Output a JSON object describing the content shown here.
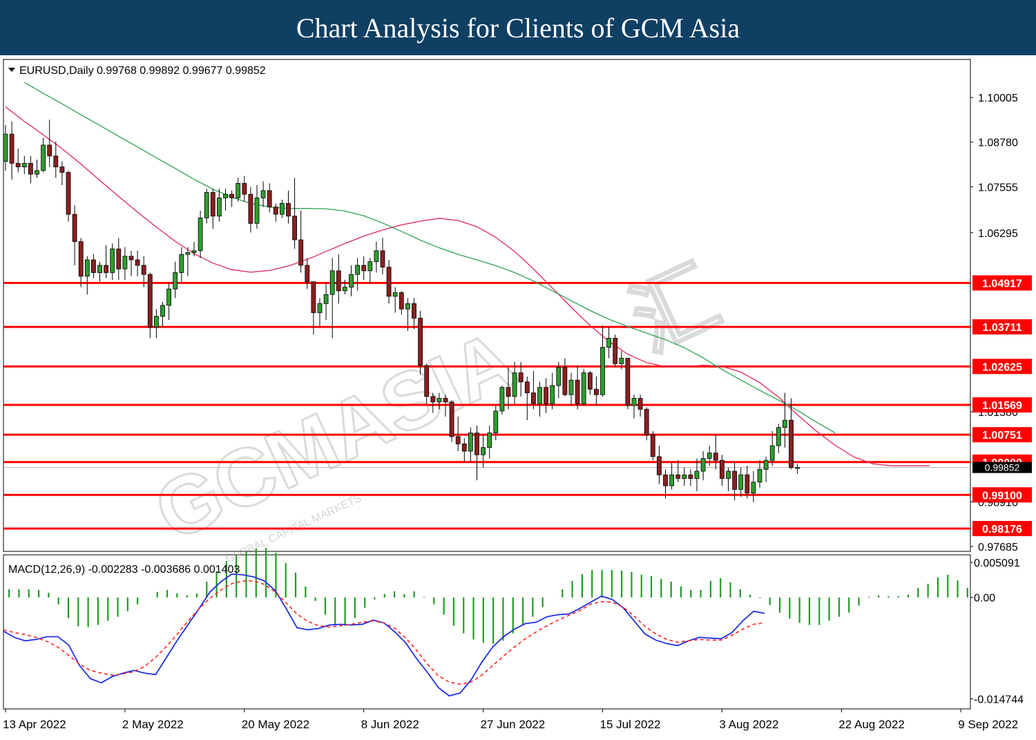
{
  "banner": {
    "title": "Chart Analysis for Clients of GCM Asia"
  },
  "watermark": {
    "text": "GCMASIA",
    "sub": "GLOBAL CAPITAL MARKETS",
    "cn": "汇"
  },
  "chart_data": {
    "type": "candlestick",
    "header": "EURUSD,Daily  0.99768 0.99892 0.99677 0.99852",
    "symbol": "EURUSD",
    "timeframe": "Daily",
    "ohlc_last": [
      0.99768,
      0.99892,
      0.99677,
      0.99852
    ],
    "ylim": [
      0.9755,
      1.1105
    ],
    "y_ticks": [
      1.10005,
      1.0878,
      1.07555,
      1.06295,
      1.0138,
      0.9891,
      0.97685
    ],
    "current_price": 0.99852,
    "current_price_label": "0.99852",
    "levels": [
      1.04917,
      1.03711,
      1.02625,
      1.01569,
      1.00751,
      1.0,
      0.991,
      0.98176
    ],
    "level_labels": [
      "1.04917",
      "1.03711",
      "1.02625",
      "1.01569",
      "1.00751",
      "1.00000",
      "0.99100",
      "0.98176"
    ],
    "x_labels": [
      "13 Apr 2022",
      "2 May 2022",
      "20 May 2022",
      "8 Jun 2022",
      "27 Jun 2022",
      "15 Jul 2022",
      "3 Aug 2022",
      "22 Aug 2022",
      "9 Sep 2022"
    ],
    "x_label_bars": [
      0,
      19,
      38,
      57,
      76,
      95,
      114,
      133,
      152
    ],
    "bars": [
      [
        1.0825,
        1.0925,
        1.08,
        1.09
      ],
      [
        1.09,
        1.0935,
        1.0775,
        1.082
      ],
      [
        1.082,
        1.086,
        1.0795,
        1.081
      ],
      [
        1.081,
        1.084,
        1.079,
        1.082
      ],
      [
        1.082,
        1.084,
        1.0765,
        1.079
      ],
      [
        1.079,
        1.083,
        1.078,
        1.08
      ],
      [
        1.08,
        1.089,
        1.0795,
        1.087
      ],
      [
        1.087,
        1.094,
        1.081,
        1.084
      ],
      [
        1.084,
        1.088,
        1.078,
        1.081
      ],
      [
        1.081,
        1.0825,
        1.076,
        1.0795
      ],
      [
        1.0795,
        1.08,
        1.066,
        1.068
      ],
      [
        1.068,
        1.0705,
        1.054,
        1.0605
      ],
      [
        1.0605,
        1.0615,
        1.048,
        1.051
      ],
      [
        1.051,
        1.0565,
        1.046,
        1.0555
      ],
      [
        1.0555,
        1.057,
        1.0505,
        1.052
      ],
      [
        1.052,
        1.055,
        1.0495,
        1.054
      ],
      [
        1.054,
        1.0595,
        1.0505,
        1.052
      ],
      [
        1.052,
        1.06,
        1.05,
        1.0585
      ],
      [
        1.0585,
        1.0615,
        1.05,
        1.053
      ],
      [
        1.053,
        1.059,
        1.05,
        1.0565
      ],
      [
        1.0565,
        1.058,
        1.051,
        1.0555
      ],
      [
        1.0555,
        1.058,
        1.051,
        1.054
      ],
      [
        1.054,
        1.0565,
        1.048,
        1.0515
      ],
      [
        1.0515,
        1.052,
        1.034,
        1.037
      ],
      [
        1.037,
        1.042,
        1.034,
        1.04
      ],
      [
        1.04,
        1.044,
        1.037,
        1.043
      ],
      [
        1.043,
        1.049,
        1.039,
        1.0475
      ],
      [
        1.0475,
        1.055,
        1.045,
        1.052
      ],
      [
        1.052,
        1.059,
        1.0495,
        1.057
      ],
      [
        1.057,
        1.059,
        1.051,
        1.0575
      ],
      [
        1.0575,
        1.0605,
        1.0565,
        1.058
      ],
      [
        1.058,
        1.069,
        1.056,
        1.067
      ],
      [
        1.067,
        1.075,
        1.0655,
        1.074
      ],
      [
        1.074,
        1.075,
        1.064,
        1.0675
      ],
      [
        1.0675,
        1.075,
        1.066,
        1.0725
      ],
      [
        1.0725,
        1.075,
        1.069,
        1.0735
      ],
      [
        1.0735,
        1.0745,
        1.07,
        1.0725
      ],
      [
        1.0725,
        1.078,
        1.0715,
        1.0765
      ],
      [
        1.0765,
        1.0785,
        1.0715,
        1.0735
      ],
      [
        1.0735,
        1.0755,
        1.063,
        1.0655
      ],
      [
        1.0655,
        1.076,
        1.064,
        1.0725
      ],
      [
        1.0725,
        1.077,
        1.07,
        1.0745
      ],
      [
        1.0745,
        1.0765,
        1.0685,
        1.07
      ],
      [
        1.07,
        1.071,
        1.066,
        1.068
      ],
      [
        1.068,
        1.072,
        1.067,
        1.071
      ],
      [
        1.071,
        1.0745,
        1.0655,
        1.0675
      ],
      [
        1.0675,
        1.078,
        1.0585,
        1.061
      ],
      [
        1.061,
        1.069,
        1.052,
        1.054
      ],
      [
        1.054,
        1.056,
        1.0475,
        1.0495
      ],
      [
        1.0495,
        1.049,
        1.035,
        1.041
      ],
      [
        1.041,
        1.045,
        1.037,
        1.0435
      ],
      [
        1.0435,
        1.049,
        1.039,
        1.046
      ],
      [
        1.046,
        1.056,
        1.034,
        1.0525
      ],
      [
        1.0525,
        1.057,
        1.0435,
        1.047
      ],
      [
        1.047,
        1.05,
        1.046,
        1.048
      ],
      [
        1.048,
        1.054,
        1.0455,
        1.0515
      ],
      [
        1.0515,
        1.056,
        1.047,
        1.054
      ],
      [
        1.054,
        1.0565,
        1.05,
        1.0525
      ],
      [
        1.0525,
        1.056,
        1.049,
        1.055
      ],
      [
        1.055,
        1.0605,
        1.052,
        1.058
      ],
      [
        1.058,
        1.0615,
        1.0515,
        1.0535
      ],
      [
        1.0535,
        1.0555,
        1.0435,
        1.0455
      ],
      [
        1.0455,
        1.048,
        1.041,
        1.0465
      ],
      [
        1.0465,
        1.047,
        1.0405,
        1.042
      ],
      [
        1.042,
        1.045,
        1.036,
        1.0435
      ],
      [
        1.0435,
        1.045,
        1.0365,
        1.0395
      ],
      [
        1.0395,
        1.0415,
        1.024,
        1.0265
      ],
      [
        1.0265,
        1.027,
        1.016,
        1.018
      ],
      [
        1.018,
        1.019,
        1.0135,
        1.0165
      ],
      [
        1.0165,
        1.019,
        1.0145,
        1.0175
      ],
      [
        1.0175,
        1.0185,
        1.0125,
        1.0165
      ],
      [
        1.0165,
        1.017,
        1.0055,
        1.007
      ],
      [
        1.007,
        1.0125,
        1.003,
        1.005
      ],
      [
        1.005,
        1.0065,
        1.0,
        1.003
      ],
      [
        1.003,
        1.0095,
        1.0,
        1.008
      ],
      [
        1.008,
        1.01,
        0.995,
        1.002
      ],
      [
        1.002,
        1.0075,
        0.9985,
        1.004
      ],
      [
        1.004,
        1.01,
        1.001,
        1.008
      ],
      [
        1.008,
        1.0155,
        1.006,
        1.014
      ],
      [
        1.014,
        1.021,
        1.013,
        1.0205
      ],
      [
        1.0205,
        1.026,
        1.0145,
        1.018
      ],
      [
        1.018,
        1.0275,
        1.016,
        1.0245
      ],
      [
        1.0245,
        1.0275,
        1.018,
        1.022
      ],
      [
        1.022,
        1.0235,
        1.0115,
        1.019
      ],
      [
        1.019,
        1.025,
        1.0145,
        1.016
      ],
      [
        1.016,
        1.022,
        1.0125,
        1.0205
      ],
      [
        1.0205,
        1.023,
        1.0135,
        1.016
      ],
      [
        1.016,
        1.0245,
        1.0145,
        1.021
      ],
      [
        1.021,
        1.0275,
        1.0175,
        1.026
      ],
      [
        1.026,
        1.0285,
        1.018,
        1.0185
      ],
      [
        1.0185,
        1.0245,
        1.0155,
        1.0225
      ],
      [
        1.0225,
        1.0265,
        1.0145,
        1.016
      ],
      [
        1.016,
        1.0255,
        1.0155,
        1.0245
      ],
      [
        1.0245,
        1.025,
        1.0185,
        1.02
      ],
      [
        1.02,
        1.0235,
        1.0155,
        1.0185
      ],
      [
        1.0185,
        1.0375,
        1.018,
        1.0315
      ],
      [
        1.0315,
        1.037,
        1.0285,
        1.034
      ],
      [
        1.034,
        1.035,
        1.026,
        1.027
      ],
      [
        1.027,
        1.0305,
        1.0255,
        1.0285
      ],
      [
        1.0285,
        1.028,
        1.0145,
        1.0155
      ],
      [
        1.0155,
        1.0185,
        1.012,
        1.0175
      ],
      [
        1.0175,
        1.0185,
        1.0125,
        1.0145
      ],
      [
        1.0145,
        1.015,
        1.006,
        1.0075
      ],
      [
        1.0075,
        1.0085,
        1.0005,
        1.0015
      ],
      [
        1.0015,
        1.0045,
        0.994,
        0.9965
      ],
      [
        0.9965,
        0.998,
        0.99,
        0.9935
      ],
      [
        0.9935,
        1.0,
        0.9925,
        0.9965
      ],
      [
        0.9965,
        1.0005,
        0.9945,
        0.9955
      ],
      [
        0.9955,
        0.9985,
        0.9935,
        0.9965
      ],
      [
        0.9965,
        0.998,
        0.9935,
        0.9955
      ],
      [
        0.9955,
        1.001,
        0.992,
        0.9975
      ],
      [
        0.9975,
        1.003,
        0.995,
        1.001
      ],
      [
        1.001,
        1.0045,
        0.999,
        1.0025
      ],
      [
        1.0025,
        1.0075,
        0.998,
        1.0005
      ],
      [
        1.0005,
        1.002,
        0.9935,
        0.9955
      ],
      [
        0.9955,
        0.9985,
        0.992,
        0.9975
      ],
      [
        0.9975,
        1.0,
        0.9895,
        0.9925
      ],
      [
        0.9925,
        0.9985,
        0.9905,
        0.9965
      ],
      [
        0.9965,
        0.999,
        0.99,
        0.9915
      ],
      [
        0.9915,
        0.9975,
        0.989,
        0.9945
      ],
      [
        0.9945,
        1.0005,
        0.993,
        0.998
      ],
      [
        0.998,
        1.0015,
        0.9945,
        1.0005
      ],
      [
        1.0005,
        1.0085,
        0.999,
        1.0045
      ],
      [
        1.0045,
        1.0105,
        1.0025,
        1.0095
      ],
      [
        1.0095,
        1.019,
        1.004,
        1.0115
      ],
      [
        1.0115,
        1.0175,
        0.998,
        0.9985
      ],
      [
        0.9985,
        0.9995,
        0.9968,
        0.99852
      ]
    ],
    "ma_fast": {
      "color": "#e0265a",
      "values": [
        1.0975,
        1.0935,
        1.0898,
        1.086,
        1.0818,
        1.0773,
        1.0729,
        1.0686,
        1.0645,
        1.0606,
        1.0572,
        1.0546,
        1.0528,
        1.0521,
        1.0526,
        1.0538,
        1.0556,
        1.0578,
        1.06,
        1.062,
        1.0637,
        1.0651,
        1.0661,
        1.0669,
        1.0663,
        1.0646,
        1.0617,
        1.0578,
        1.053,
        1.0478,
        1.0425,
        1.0375,
        1.0331,
        1.0296,
        1.0273,
        1.0262,
        1.0262,
        1.0266,
        1.0263,
        1.0247,
        1.0218,
        1.0178,
        1.013,
        1.0085,
        1.0046,
        1.0014,
        0.9995,
        0.999,
        0.999,
        0.999
      ]
    },
    "ma_slow": {
      "color": "#2ea04f",
      "values": [
        1.1042,
        1.1012,
        1.0983,
        1.0953,
        1.0924,
        1.0894,
        1.0865,
        1.0835,
        1.0806,
        1.0776,
        1.0749,
        1.0727,
        1.071,
        1.07,
        1.0696,
        1.0696,
        1.0695,
        1.0689,
        1.0676,
        1.0656,
        1.0633,
        1.0609,
        1.0588,
        1.057,
        1.0555,
        1.0539,
        1.052,
        1.0497,
        1.047,
        1.0443,
        1.0416,
        1.0392,
        1.0372,
        1.0354,
        1.0336,
        1.0314,
        1.0286,
        1.0254,
        1.0225,
        1.0197,
        1.017,
        1.0142,
        1.011,
        1.008
      ]
    },
    "macd": {
      "label": "MACD(12,26,9) -0.002283 -0.003686 0.001403",
      "params": [
        12,
        26,
        9
      ],
      "main": -0.002283,
      "signal": -0.003686,
      "histogram_value": 0.001403,
      "ylim": [
        -0.0162,
        0.0062
      ],
      "y_ticks": [
        0.005091,
        0.0,
        -0.014744
      ],
      "y_tick_labels": [
        "0.005091",
        "0.00",
        "-0.014744"
      ],
      "histogram_color": "#1f9d1f",
      "main_color": "#1f2ee0",
      "signal_color": "#ff2020",
      "macd_line": [
        -0.0049,
        -0.0058,
        -0.0063,
        -0.0061,
        -0.0057,
        -0.0057,
        -0.0069,
        -0.0099,
        -0.0118,
        -0.0124,
        -0.0115,
        -0.011,
        -0.0106,
        -0.011,
        -0.0112,
        -0.0087,
        -0.0062,
        -0.0039,
        -0.0016,
        0.0008,
        0.0023,
        0.0034,
        0.0033,
        0.003,
        0.0024,
        0.001,
        -0.0016,
        -0.0044,
        -0.0047,
        -0.0045,
        -0.004,
        -0.0039,
        -0.004,
        -0.0039,
        -0.0033,
        -0.0037,
        -0.005,
        -0.0066,
        -0.0089,
        -0.0109,
        -0.0131,
        -0.0143,
        -0.0139,
        -0.012,
        -0.0094,
        -0.0072,
        -0.0057,
        -0.0046,
        -0.0038,
        -0.0036,
        -0.0028,
        -0.0025,
        -0.0024,
        -0.0016,
        -0.0007,
        0.0002,
        -0.0003,
        -0.0015,
        -0.0034,
        -0.0053,
        -0.0062,
        -0.0067,
        -0.007,
        -0.0063,
        -0.0058,
        -0.0059,
        -0.006,
        -0.0051,
        -0.0034,
        -0.002,
        -0.0023
      ],
      "signal_line": [
        -0.0047,
        -0.0051,
        -0.0054,
        -0.0058,
        -0.0064,
        -0.0072,
        -0.0084,
        -0.0097,
        -0.0106,
        -0.011,
        -0.0113,
        -0.0111,
        -0.0108,
        -0.01,
        -0.0087,
        -0.0071,
        -0.0053,
        -0.0034,
        -0.0016,
        -0.0001,
        0.0011,
        0.002,
        0.0024,
        0.0024,
        0.0019,
        0.0008,
        -0.0008,
        -0.0024,
        -0.0035,
        -0.0041,
        -0.0043,
        -0.0041,
        -0.0039,
        -0.0036,
        -0.0034,
        -0.0037,
        -0.0045,
        -0.0059,
        -0.0077,
        -0.0097,
        -0.0114,
        -0.0123,
        -0.0126,
        -0.0123,
        -0.0113,
        -0.0099,
        -0.0085,
        -0.0072,
        -0.006,
        -0.005,
        -0.0041,
        -0.0033,
        -0.0026,
        -0.0019,
        -0.001,
        -0.0006,
        -0.0007,
        -0.0014,
        -0.0027,
        -0.0042,
        -0.0053,
        -0.0061,
        -0.0065,
        -0.0063,
        -0.0061,
        -0.0062,
        -0.0062,
        -0.0055,
        -0.0046,
        -0.0039,
        -0.0037
      ],
      "histogram": [
        0.0012,
        0.0012,
        0.0012,
        0.0011,
        0.0007,
        -0.001,
        -0.003,
        -0.0042,
        -0.0043,
        -0.004,
        -0.0034,
        -0.0028,
        -0.002,
        -0.001,
        0.0,
        0.0008,
        0.0011,
        0.0006,
        0.0003,
        0.0006,
        0.0023,
        0.0038,
        0.0053,
        0.0061,
        0.0066,
        0.0071,
        0.0072,
        0.0065,
        0.005,
        0.0036,
        0.0016,
        -0.0005,
        -0.0025,
        -0.004,
        -0.0041,
        -0.003,
        -0.0015,
        -0.0003,
        0.0005,
        0.0009,
        0.0005,
        0.0009,
        0.0001,
        -0.001,
        -0.0025,
        -0.0041,
        -0.0052,
        -0.0061,
        -0.0066,
        -0.0067,
        -0.0063,
        -0.0052,
        -0.004,
        -0.0028,
        -0.0014,
        0.0,
        0.0012,
        0.0024,
        0.0034,
        0.004,
        0.004,
        0.004,
        0.0039,
        0.0037,
        0.0033,
        0.0031,
        0.0027,
        0.0023,
        0.0016,
        0.0011,
        0.0011,
        0.0024,
        0.0028,
        0.0022,
        0.0012,
        0.0004,
        -0.0001,
        -0.0011,
        -0.0022,
        -0.0031,
        -0.0037,
        -0.004,
        -0.004,
        -0.0034,
        -0.0028,
        -0.0022,
        -0.0012,
        0.0001,
        0.0003,
        0.0002,
        0.0002,
        0.0004,
        0.0014,
        0.002,
        0.0029,
        0.0033,
        0.0025,
        0.0014
      ]
    }
  }
}
